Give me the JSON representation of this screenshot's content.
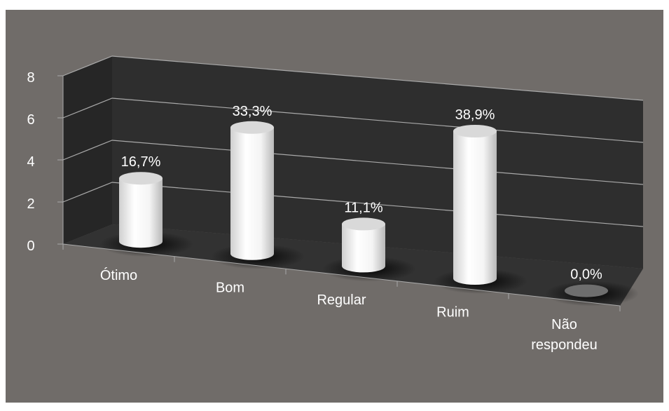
{
  "chart_data": {
    "type": "bar",
    "style": "3d-cylinder",
    "categories": [
      "Ótimo",
      "Bom",
      "Regular",
      "Ruim",
      "Não respondeu"
    ],
    "category_lines": [
      [
        "Ótimo"
      ],
      [
        "Bom"
      ],
      [
        "Regular"
      ],
      [
        "Ruim"
      ],
      [
        "Não",
        "respondeu"
      ]
    ],
    "values": [
      3,
      6,
      2,
      7,
      0
    ],
    "data_labels": [
      "16,7%",
      "33,3%",
      "11,1%",
      "38,9%",
      "0,0%"
    ],
    "ylim": [
      0,
      8
    ],
    "yticks": [
      "0",
      "2",
      "4",
      "6",
      "8"
    ],
    "grid": true,
    "title": "",
    "xlabel": "",
    "ylabel": ""
  },
  "colors": {
    "background": "#706c69",
    "back_wall": "#2e2e2e",
    "side_wall": "#262626",
    "floor": "#323232",
    "gridline": "#a9a9a9",
    "bar": "#f2f2f2",
    "text": "#ffffff"
  }
}
